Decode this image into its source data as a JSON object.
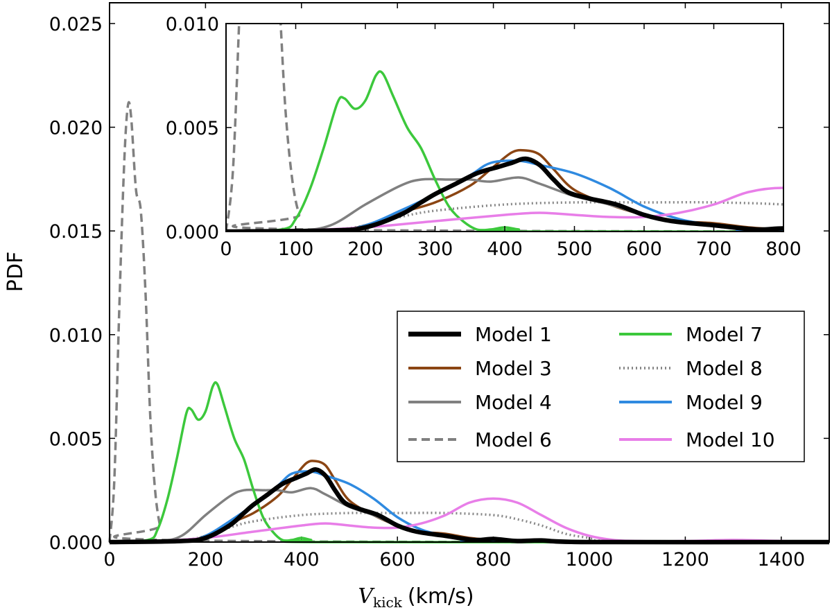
{
  "chart_data": {
    "type": "line",
    "xlabel": "V_kick (km/s)",
    "xlabel_symbol": "V",
    "xlabel_subscript": "kick",
    "xlabel_unit": "(km/s)",
    "ylabel": "PDF",
    "xlim": [
      0,
      1500
    ],
    "ylim": [
      0,
      0.026
    ],
    "xticks": [
      "0",
      "200",
      "400",
      "600",
      "800",
      "1000",
      "1200",
      "1400"
    ],
    "yticks": [
      "0.000",
      "0.005",
      "0.010",
      "0.015",
      "0.020",
      "0.025"
    ],
    "legend_position": "center-right",
    "series": [
      {
        "name": "Model 1",
        "color": "#000000",
        "style": "solid-thick",
        "x": [
          0,
          150,
          200,
          250,
          280,
          300,
          330,
          360,
          390,
          410,
          430,
          450,
          470,
          490,
          520,
          560,
          600,
          640,
          700,
          760,
          800,
          850,
          900,
          1000,
          1500
        ],
        "y": [
          0,
          5e-05,
          0.0002,
          0.0008,
          0.0014,
          0.0018,
          0.0023,
          0.0028,
          0.0031,
          0.0033,
          0.0035,
          0.0032,
          0.0025,
          0.0019,
          0.0016,
          0.0013,
          0.0008,
          0.0005,
          0.0003,
          0.0001,
          0.00015,
          5e-05,
          8e-05,
          0,
          0
        ]
      },
      {
        "name": "Model 3",
        "color": "#8b4513",
        "style": "solid",
        "x": [
          0,
          150,
          200,
          250,
          300,
          350,
          380,
          410,
          430,
          450,
          470,
          500,
          550,
          600,
          650,
          700,
          750,
          800,
          850,
          1500
        ],
        "y": [
          0,
          5e-05,
          0.0003,
          0.0009,
          0.0014,
          0.0022,
          0.003,
          0.0038,
          0.0039,
          0.0037,
          0.003,
          0.002,
          0.0013,
          0.0008,
          0.0005,
          0.0004,
          0.0002,
          0.0001,
          5e-05,
          0
        ]
      },
      {
        "name": "Model 4",
        "color": "#808080",
        "style": "solid",
        "x": [
          0,
          100,
          150,
          200,
          250,
          280,
          320,
          350,
          380,
          420,
          450,
          500,
          550,
          600,
          650,
          700,
          750,
          800,
          1500
        ],
        "y": [
          0,
          5e-05,
          0.0003,
          0.0013,
          0.0022,
          0.0025,
          0.0025,
          0.0025,
          0.0024,
          0.0026,
          0.0023,
          0.0017,
          0.0013,
          0.0008,
          0.0005,
          0.0003,
          0.0001,
          5e-05,
          0
        ]
      },
      {
        "name": "Model 6",
        "color": "#808080",
        "style": "dashed",
        "x": [
          0,
          10,
          20,
          30,
          38,
          45,
          55,
          65,
          75,
          85,
          95,
          105,
          115,
          1500
        ],
        "y": [
          0,
          0.003,
          0.011,
          0.018,
          0.021,
          0.0205,
          0.017,
          0.016,
          0.012,
          0.006,
          0.0025,
          0.0008,
          0.0001,
          0
        ]
      },
      {
        "name": "Model 7",
        "color": "#3cc83c",
        "style": "solid",
        "x": [
          0,
          80,
          100,
          120,
          140,
          160,
          170,
          185,
          200,
          215,
          225,
          240,
          260,
          280,
          300,
          320,
          340,
          360,
          380,
          400,
          420,
          450,
          1500
        ],
        "y": [
          0,
          0.0001,
          0.0006,
          0.002,
          0.004,
          0.0062,
          0.0064,
          0.0059,
          0.0063,
          0.0075,
          0.0076,
          0.0065,
          0.005,
          0.004,
          0.0025,
          0.0012,
          0.0005,
          0.0001,
          0.0001,
          0.0002,
          0.0001,
          0,
          0
        ]
      },
      {
        "name": "Model 8",
        "color": "#888888",
        "style": "dotted",
        "x": [
          0,
          150,
          200,
          250,
          300,
          400,
          500,
          600,
          700,
          800,
          850,
          900,
          950,
          1000,
          1050,
          1500
        ],
        "y": [
          0,
          0.0001,
          0.0003,
          0.0007,
          0.001,
          0.0013,
          0.0014,
          0.0014,
          0.0014,
          0.0013,
          0.0011,
          0.0008,
          0.0004,
          0.0002,
          5e-05,
          0
        ]
      },
      {
        "name": "Model 9",
        "color": "#2f8ae0",
        "style": "solid",
        "x": [
          0,
          150,
          200,
          250,
          300,
          350,
          380,
          420,
          450,
          500,
          550,
          600,
          650,
          700,
          750,
          800,
          1500
        ],
        "y": [
          0,
          5e-05,
          0.0003,
          0.001,
          0.0018,
          0.0027,
          0.0033,
          0.0034,
          0.0032,
          0.0028,
          0.0021,
          0.0012,
          0.0006,
          0.0003,
          0.0001,
          5e-05,
          0
        ]
      },
      {
        "name": "Model 10",
        "color": "#e87ee8",
        "style": "solid",
        "x": [
          0,
          100,
          200,
          300,
          400,
          450,
          500,
          550,
          600,
          650,
          700,
          750,
          800,
          850,
          900,
          950,
          1000,
          1050,
          1100,
          1200,
          1300,
          1400,
          1500
        ],
        "y": [
          0,
          5e-05,
          0.0002,
          0.0005,
          0.0008,
          0.0009,
          0.0008,
          0.0007,
          0.0007,
          0.0009,
          0.0013,
          0.0019,
          0.0021,
          0.0019,
          0.0013,
          0.0007,
          0.0003,
          0.0001,
          5e-05,
          5e-05,
          0.0001,
          5e-05,
          0
        ]
      }
    ],
    "inset": {
      "xlim": [
        0,
        800
      ],
      "ylim": [
        0,
        0.01
      ],
      "xticks": [
        "0",
        "100",
        "200",
        "300",
        "400",
        "500",
        "600",
        "700",
        "800"
      ],
      "yticks": [
        "0.000",
        "0.005",
        "0.010"
      ]
    }
  }
}
